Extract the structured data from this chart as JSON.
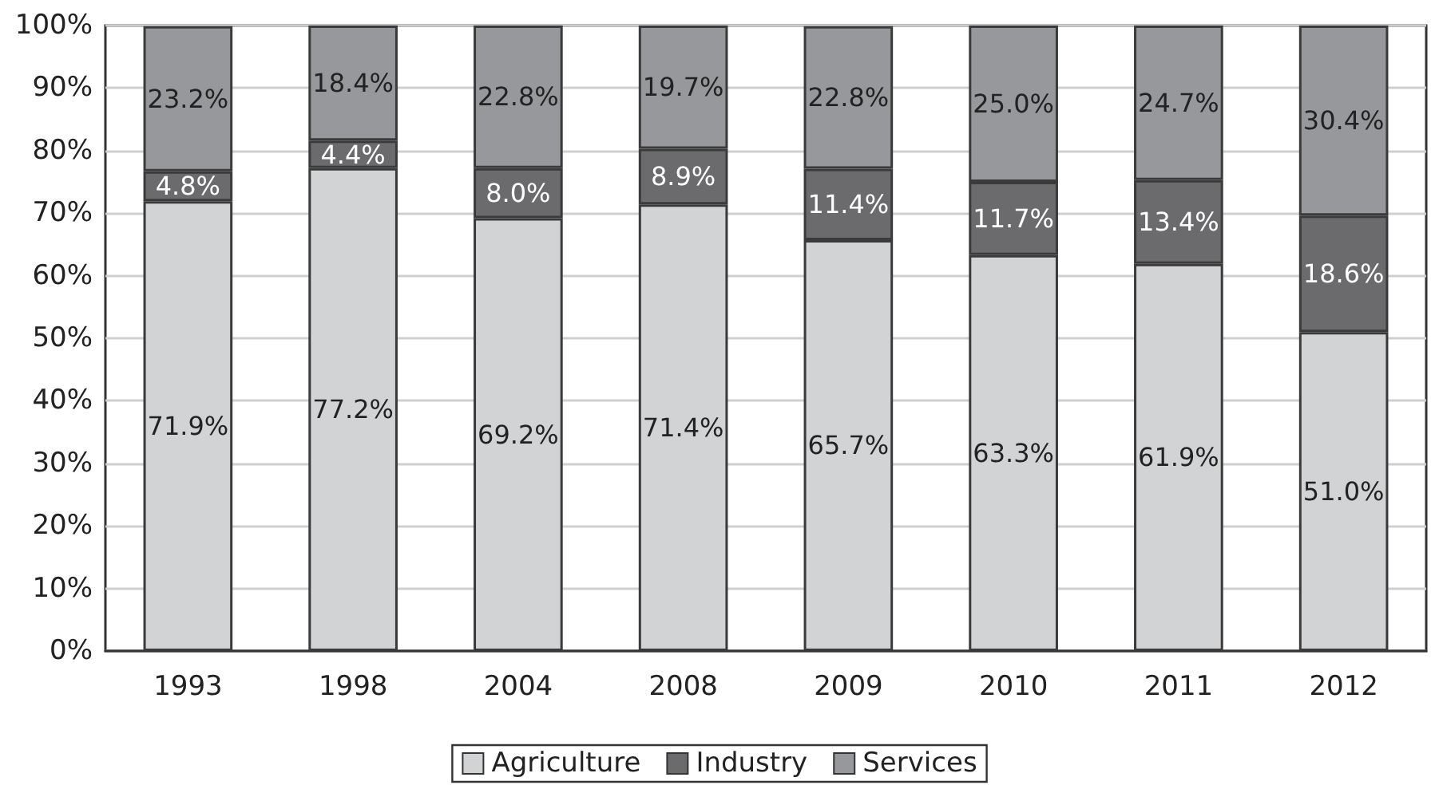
{
  "chart_data": {
    "type": "bar",
    "stacked": true,
    "categories": [
      "1993",
      "1998",
      "2004",
      "2008",
      "2009",
      "2010",
      "2011",
      "2012"
    ],
    "series": [
      {
        "name": "Agriculture",
        "color": "#d2d3d5",
        "values": [
          71.9,
          77.2,
          69.2,
          71.4,
          65.7,
          63.3,
          61.9,
          51.0
        ],
        "value_labels": [
          "71.9%",
          "77.2%",
          "69.2%",
          "71.4%",
          "65.7%",
          "63.3%",
          "61.9%",
          "51.0%"
        ]
      },
      {
        "name": "Industry",
        "color": "#6b6b6e",
        "values": [
          4.8,
          4.4,
          8.0,
          8.9,
          11.4,
          11.7,
          13.4,
          18.6
        ],
        "value_labels": [
          "4.8%",
          "4.4%",
          "8.0%",
          "8.9%",
          "11.4%",
          "11.7%",
          "13.4%",
          "18.6%"
        ]
      },
      {
        "name": "Services",
        "color": "#97989b",
        "values": [
          23.2,
          18.4,
          22.8,
          19.7,
          22.8,
          25.0,
          24.7,
          30.4
        ],
        "value_labels": [
          "23.2%",
          "18.4%",
          "22.8%",
          "19.7%",
          "22.8%",
          "25.0%",
          "24.7%",
          "30.4%"
        ]
      }
    ],
    "ylim": [
      0,
      100
    ],
    "yticks": [
      {
        "value": 0,
        "label": "0%"
      },
      {
        "value": 10,
        "label": "10%"
      },
      {
        "value": 20,
        "label": "20%"
      },
      {
        "value": 30,
        "label": "30%"
      },
      {
        "value": 40,
        "label": "40%"
      },
      {
        "value": 50,
        "label": "50%"
      },
      {
        "value": 60,
        "label": "60%"
      },
      {
        "value": 70,
        "label": "70%"
      },
      {
        "value": 80,
        "label": "80%"
      },
      {
        "value": 90,
        "label": "90%"
      },
      {
        "value": 100,
        "label": "100%"
      }
    ],
    "grid": "y",
    "legend": "bottom"
  }
}
